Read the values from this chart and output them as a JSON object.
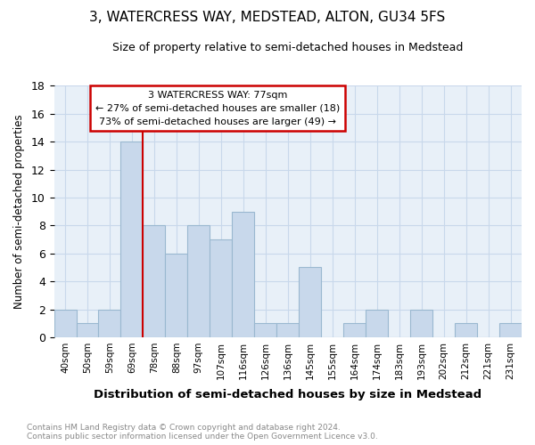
{
  "title": "3, WATERCRESS WAY, MEDSTEAD, ALTON, GU34 5FS",
  "subtitle": "Size of property relative to semi-detached houses in Medstead",
  "xlabel": "Distribution of semi-detached houses by size in Medstead",
  "ylabel": "Number of semi-detached properties",
  "bar_color": "#c8d8eb",
  "bar_edge_color": "#9ab8d0",
  "grid_color": "#c8d8eb",
  "background_color": "#e8f0f8",
  "annotation_line_color": "#cc0000",
  "annotation_box_color": "#ffffff",
  "annotation_box_edge": "#cc0000",
  "annotation_text_line1": "3 WATERCRESS WAY: 77sqm",
  "annotation_text_line2": "← 27% of semi-detached houses are smaller (18)",
  "annotation_text_line3": "73% of semi-detached houses are larger (49) →",
  "footer_text": "Contains HM Land Registry data © Crown copyright and database right 2024.\nContains public sector information licensed under the Open Government Licence v3.0.",
  "bin_labels": [
    "40sqm",
    "50sqm",
    "59sqm",
    "69sqm",
    "78sqm",
    "88sqm",
    "97sqm",
    "107sqm",
    "116sqm",
    "126sqm",
    "136sqm",
    "145sqm",
    "155sqm",
    "164sqm",
    "174sqm",
    "183sqm",
    "193sqm",
    "202sqm",
    "212sqm",
    "221sqm",
    "231sqm"
  ],
  "counts": [
    2,
    1,
    2,
    14,
    8,
    6,
    8,
    7,
    9,
    1,
    1,
    5,
    0,
    1,
    2,
    0,
    2,
    0,
    1,
    0,
    1
  ],
  "property_bin_index": 4,
  "ylim": [
    0,
    18
  ],
  "yticks": [
    0,
    2,
    4,
    6,
    8,
    10,
    12,
    14,
    16,
    18
  ]
}
